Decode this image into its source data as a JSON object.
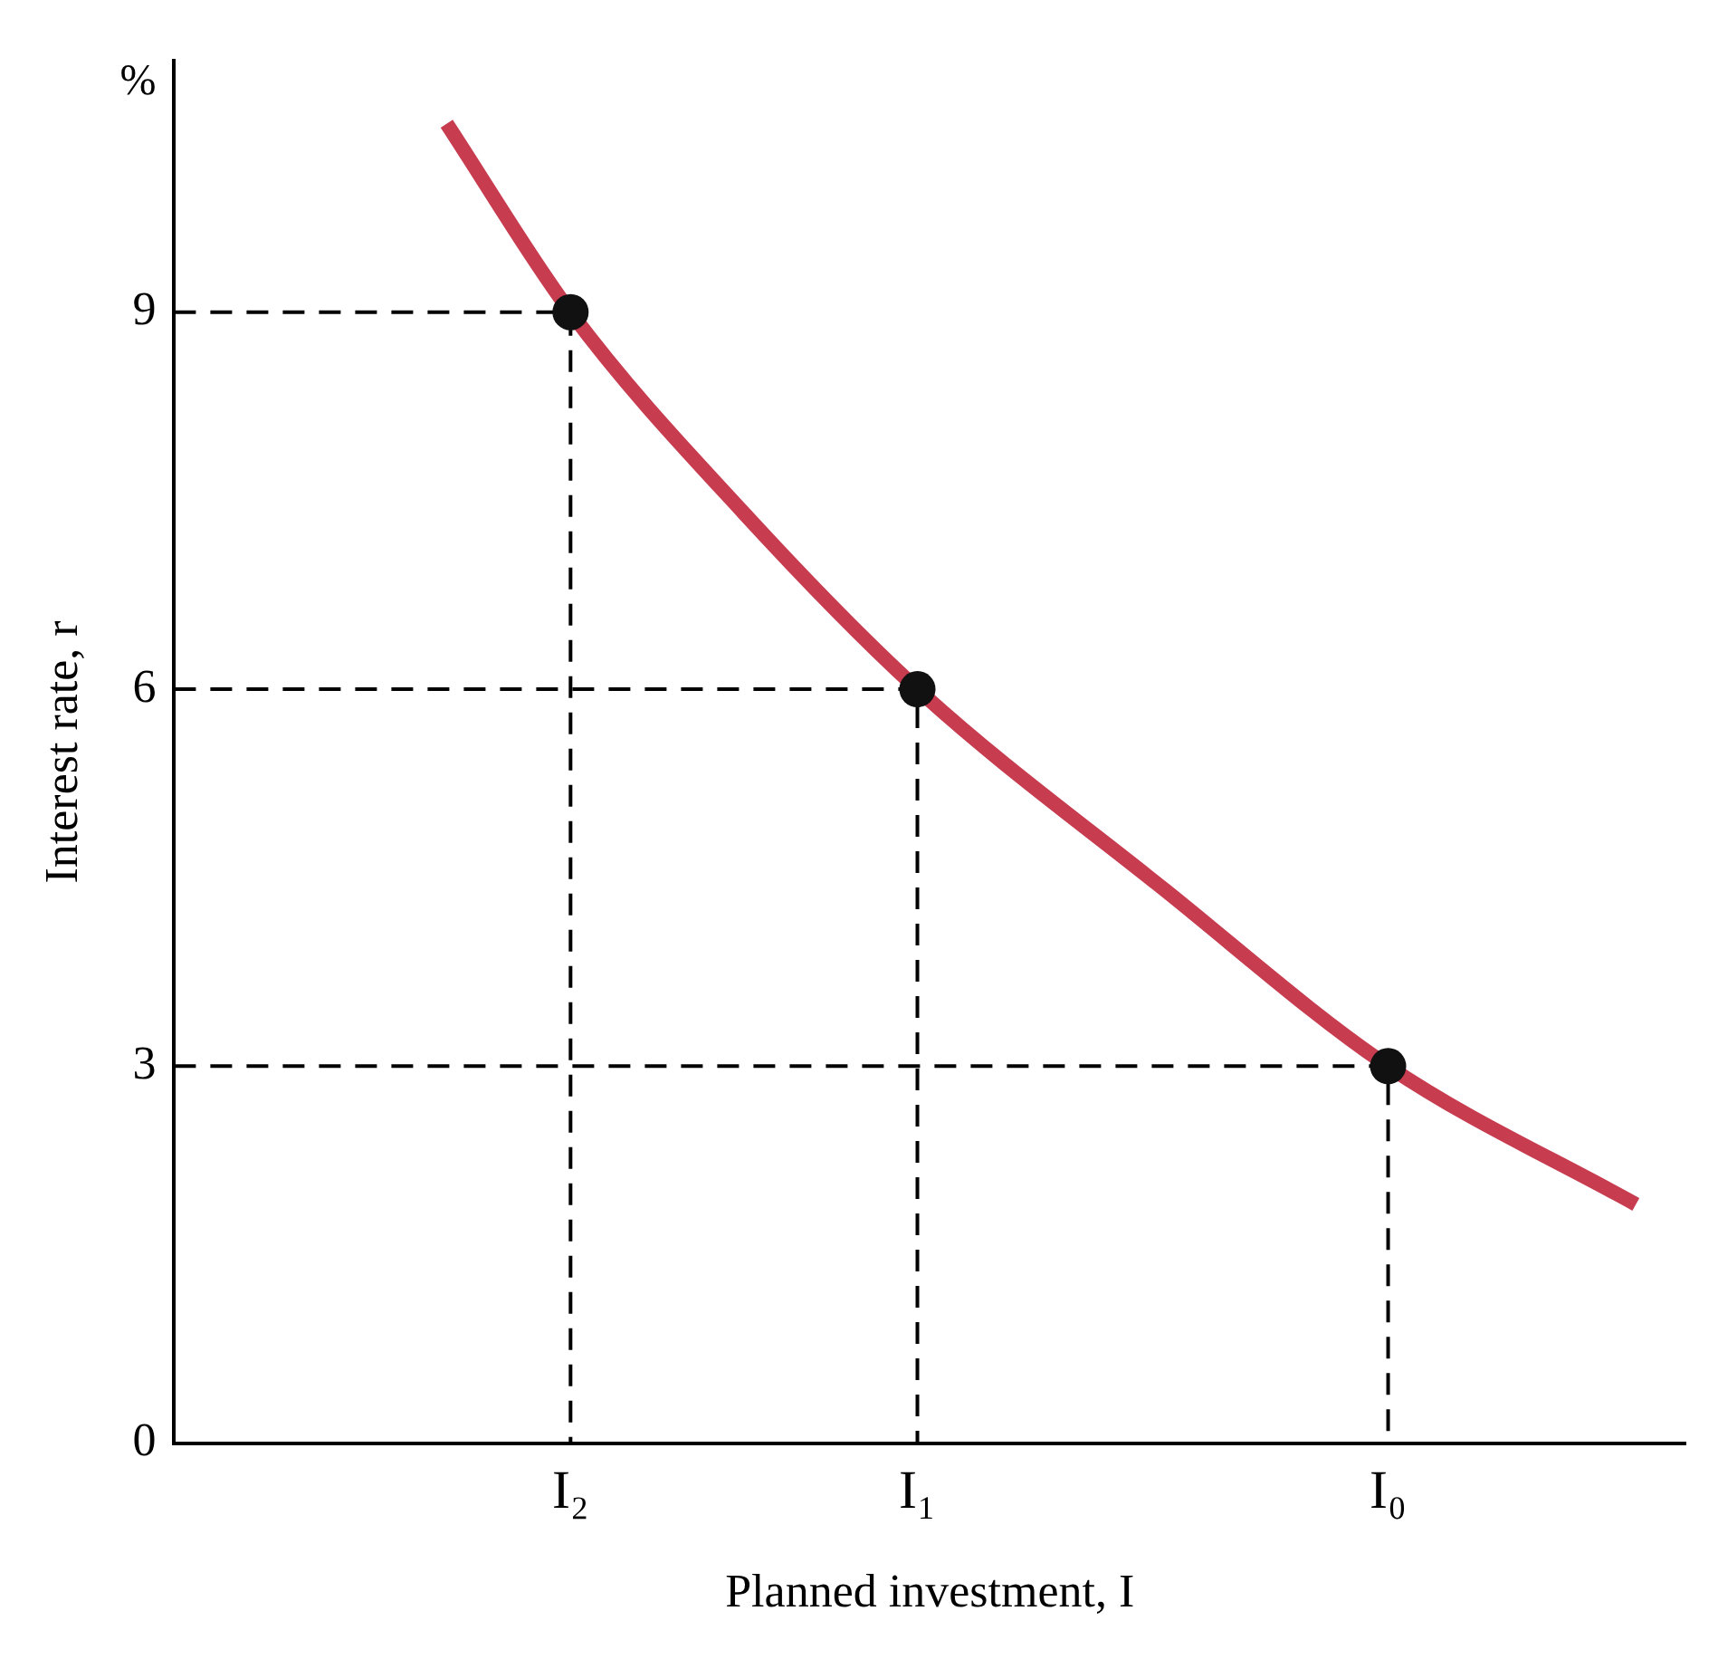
{
  "chart_data": {
    "type": "line",
    "xlabel": "Planned investment, I",
    "ylabel": "Interest rate, r",
    "annotations": [
      "%"
    ],
    "categories": [
      null,
      null,
      null,
      null,
      null,
      null,
      null,
      null,
      null,
      null,
      null,
      null,
      null,
      null,
      null,
      null,
      "I₂",
      null,
      null,
      null,
      null,
      null,
      null,
      null,
      null,
      null,
      null,
      null,
      null,
      null,
      "I₁",
      null,
      null,
      null,
      null,
      null,
      null,
      null,
      null,
      null,
      null,
      null,
      null,
      null,
      null,
      null,
      null,
      null,
      null,
      "I₀",
      null,
      null,
      null,
      null,
      null,
      null,
      null,
      null,
      null,
      null,
      null,
      null
    ],
    "ylim": [
      0,
      11
    ],
    "yticks": [
      0,
      3,
      6,
      9
    ],
    "series": [
      {
        "color": "#c83c50",
        "marker": "none",
        "line_style": "solid",
        "values": [
          null,
          null,
          null,
          null,
          null,
          null,
          null,
          null,
          null,
          null,
          null,
          10.5,
          null,
          null,
          null,
          null,
          9,
          null,
          null,
          null,
          null,
          null,
          null,
          7.4,
          null,
          null,
          null,
          null,
          null,
          null,
          6,
          null,
          null,
          null,
          null,
          null,
          null,
          null,
          null,
          null,
          4.4,
          null,
          null,
          null,
          null,
          null,
          null,
          null,
          null,
          3,
          null,
          null,
          null,
          null,
          null,
          null,
          null,
          null,
          null,
          1.9,
          null,
          null
        ]
      },
      {
        "type": "scatter",
        "marker": "circle",
        "color": "#111111",
        "values": [
          null,
          null,
          null,
          null,
          null,
          null,
          null,
          null,
          null,
          null,
          null,
          null,
          null,
          null,
          null,
          null,
          9,
          null,
          null,
          null,
          null,
          null,
          null,
          null,
          null,
          null,
          null,
          null,
          null,
          null,
          6,
          null,
          null,
          null,
          null,
          null,
          null,
          null,
          null,
          null,
          null,
          null,
          null,
          null,
          null,
          null,
          null,
          null,
          null,
          3,
          null,
          null,
          null,
          null,
          null,
          null,
          null,
          null,
          null,
          null,
          null,
          null
        ]
      }
    ]
  }
}
